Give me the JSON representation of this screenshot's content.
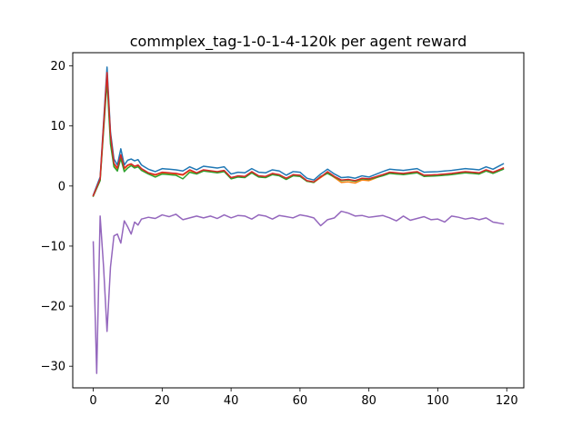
{
  "chart_data": {
    "type": "line",
    "title": "commplex_tag-1-0-1-4-120k per agent reward",
    "xlabel": "",
    "ylabel": "",
    "xlim": [
      -5.95,
      124.95
    ],
    "ylim": [
      -33.6,
      22.2
    ],
    "xticks": [
      0,
      20,
      40,
      60,
      80,
      100,
      120
    ],
    "yticks": [
      -30,
      -20,
      -10,
      0,
      10,
      20
    ],
    "xtick_labels": [
      "0",
      "20",
      "40",
      "60",
      "80",
      "100",
      "120"
    ],
    "ytick_labels": [
      "−30",
      "−20",
      "−10",
      "0",
      "10",
      "20"
    ],
    "grid": false,
    "legend": false,
    "x_start": 0,
    "x_end": 119,
    "series": [
      {
        "color": "#1f77b4",
        "anchors": [
          [
            0,
            -1.5
          ],
          [
            2,
            1.5
          ],
          [
            4,
            19.8
          ],
          [
            5,
            9
          ],
          [
            6,
            4.5
          ],
          [
            7,
            3.5
          ],
          [
            8,
            6.2
          ],
          [
            9,
            3.5
          ],
          [
            10,
            4.3
          ],
          [
            11,
            4.5
          ],
          [
            12,
            4.2
          ],
          [
            13,
            4.4
          ],
          [
            14,
            3.5
          ],
          [
            16,
            2.8
          ],
          [
            18,
            2.4
          ],
          [
            20,
            2.9
          ],
          [
            24,
            2.7
          ],
          [
            26,
            2.5
          ],
          [
            28,
            3.2
          ],
          [
            30,
            2.7
          ],
          [
            32,
            3.3
          ],
          [
            36,
            3.0
          ],
          [
            38,
            3.2
          ],
          [
            40,
            2.0
          ],
          [
            42,
            2.3
          ],
          [
            44,
            2.2
          ],
          [
            46,
            2.9
          ],
          [
            48,
            2.3
          ],
          [
            50,
            2.2
          ],
          [
            52,
            2.7
          ],
          [
            54,
            2.5
          ],
          [
            56,
            1.8
          ],
          [
            58,
            2.4
          ],
          [
            60,
            2.3
          ],
          [
            62,
            1.3
          ],
          [
            64,
            1.0
          ],
          [
            66,
            2.0
          ],
          [
            68,
            2.8
          ],
          [
            70,
            2.0
          ],
          [
            72,
            1.4
          ],
          [
            74,
            1.5
          ],
          [
            76,
            1.3
          ],
          [
            78,
            1.7
          ],
          [
            80,
            1.5
          ],
          [
            84,
            2.4
          ],
          [
            86,
            2.8
          ],
          [
            90,
            2.6
          ],
          [
            94,
            2.9
          ],
          [
            96,
            2.3
          ],
          [
            100,
            2.4
          ],
          [
            104,
            2.6
          ],
          [
            108,
            2.9
          ],
          [
            112,
            2.7
          ],
          [
            114,
            3.2
          ],
          [
            116,
            2.8
          ],
          [
            119,
            3.7
          ]
        ]
      },
      {
        "color": "#ff7f0e",
        "anchors": [
          [
            0,
            -1.6
          ],
          [
            2,
            1.0
          ],
          [
            4,
            18.5
          ],
          [
            5,
            8
          ],
          [
            6,
            3.5
          ],
          [
            7,
            2.8
          ],
          [
            8,
            5.0
          ],
          [
            9,
            2.8
          ],
          [
            10,
            3.4
          ],
          [
            11,
            3.6
          ],
          [
            12,
            3.2
          ],
          [
            13,
            3.4
          ],
          [
            14,
            2.8
          ],
          [
            16,
            2.1
          ],
          [
            18,
            1.8
          ],
          [
            20,
            2.2
          ],
          [
            24,
            2.0
          ],
          [
            26,
            1.8
          ],
          [
            28,
            2.6
          ],
          [
            30,
            2.1
          ],
          [
            32,
            2.6
          ],
          [
            36,
            2.3
          ],
          [
            38,
            2.5
          ],
          [
            40,
            1.3
          ],
          [
            42,
            1.6
          ],
          [
            44,
            1.5
          ],
          [
            46,
            2.3
          ],
          [
            48,
            1.6
          ],
          [
            50,
            1.5
          ],
          [
            52,
            2.0
          ],
          [
            54,
            1.8
          ],
          [
            56,
            1.2
          ],
          [
            58,
            1.8
          ],
          [
            60,
            1.7
          ],
          [
            62,
            0.8
          ],
          [
            64,
            0.6
          ],
          [
            66,
            1.4
          ],
          [
            68,
            2.2
          ],
          [
            70,
            1.4
          ],
          [
            72,
            0.6
          ],
          [
            74,
            0.7
          ],
          [
            76,
            0.5
          ],
          [
            78,
            1.0
          ],
          [
            80,
            0.9
          ],
          [
            84,
            1.8
          ],
          [
            86,
            2.2
          ],
          [
            90,
            2.0
          ],
          [
            94,
            2.3
          ],
          [
            96,
            1.7
          ],
          [
            100,
            1.8
          ],
          [
            104,
            2.0
          ],
          [
            108,
            2.3
          ],
          [
            112,
            2.1
          ],
          [
            114,
            2.6
          ],
          [
            116,
            2.2
          ],
          [
            119,
            3.0
          ]
        ]
      },
      {
        "color": "#2ca02c",
        "anchors": [
          [
            0,
            -1.7
          ],
          [
            2,
            0.9
          ],
          [
            4,
            17.5
          ],
          [
            5,
            7
          ],
          [
            6,
            3.2
          ],
          [
            7,
            2.5
          ],
          [
            8,
            4.6
          ],
          [
            9,
            2.4
          ],
          [
            10,
            3.0
          ],
          [
            11,
            3.4
          ],
          [
            12,
            3.0
          ],
          [
            13,
            3.2
          ],
          [
            14,
            2.6
          ],
          [
            16,
            2.0
          ],
          [
            18,
            1.5
          ],
          [
            20,
            2.0
          ],
          [
            24,
            1.8
          ],
          [
            26,
            1.2
          ],
          [
            28,
            2.3
          ],
          [
            30,
            2.0
          ],
          [
            32,
            2.5
          ],
          [
            36,
            2.2
          ],
          [
            38,
            2.4
          ],
          [
            40,
            1.2
          ],
          [
            42,
            1.5
          ],
          [
            44,
            1.4
          ],
          [
            46,
            2.2
          ],
          [
            48,
            1.5
          ],
          [
            50,
            1.4
          ],
          [
            52,
            1.9
          ],
          [
            54,
            1.7
          ],
          [
            56,
            1.1
          ],
          [
            58,
            1.7
          ],
          [
            60,
            1.6
          ],
          [
            62,
            0.8
          ],
          [
            64,
            0.6
          ],
          [
            66,
            1.6
          ],
          [
            68,
            2.1
          ],
          [
            70,
            1.5
          ],
          [
            72,
            0.9
          ],
          [
            74,
            1.0
          ],
          [
            76,
            0.8
          ],
          [
            78,
            1.2
          ],
          [
            80,
            1.1
          ],
          [
            84,
            1.7
          ],
          [
            86,
            2.1
          ],
          [
            90,
            1.9
          ],
          [
            94,
            2.2
          ],
          [
            96,
            1.6
          ],
          [
            100,
            1.7
          ],
          [
            104,
            1.9
          ],
          [
            108,
            2.2
          ],
          [
            112,
            2.0
          ],
          [
            114,
            2.5
          ],
          [
            116,
            2.1
          ],
          [
            119,
            2.8
          ]
        ]
      },
      {
        "color": "#d62728",
        "anchors": [
          [
            0,
            -1.6
          ],
          [
            2,
            1.2
          ],
          [
            4,
            18.9
          ],
          [
            5,
            8.5
          ],
          [
            6,
            3.8
          ],
          [
            7,
            3.0
          ],
          [
            8,
            5.2
          ],
          [
            9,
            3.0
          ],
          [
            10,
            3.5
          ],
          [
            11,
            3.7
          ],
          [
            12,
            3.3
          ],
          [
            13,
            3.5
          ],
          [
            14,
            2.9
          ],
          [
            16,
            2.2
          ],
          [
            18,
            1.9
          ],
          [
            20,
            2.3
          ],
          [
            24,
            2.1
          ],
          [
            26,
            1.9
          ],
          [
            28,
            2.7
          ],
          [
            30,
            2.2
          ],
          [
            32,
            2.7
          ],
          [
            36,
            2.4
          ],
          [
            38,
            2.6
          ],
          [
            40,
            1.4
          ],
          [
            42,
            1.7
          ],
          [
            44,
            1.6
          ],
          [
            46,
            2.4
          ],
          [
            48,
            1.7
          ],
          [
            50,
            1.6
          ],
          [
            52,
            2.1
          ],
          [
            54,
            1.9
          ],
          [
            56,
            1.3
          ],
          [
            58,
            1.9
          ],
          [
            60,
            1.8
          ],
          [
            62,
            0.9
          ],
          [
            64,
            0.7
          ],
          [
            66,
            1.5
          ],
          [
            68,
            2.4
          ],
          [
            70,
            1.6
          ],
          [
            72,
            1.0
          ],
          [
            74,
            1.1
          ],
          [
            76,
            0.9
          ],
          [
            78,
            1.3
          ],
          [
            80,
            1.2
          ],
          [
            84,
            1.9
          ],
          [
            86,
            2.3
          ],
          [
            90,
            2.1
          ],
          [
            94,
            2.4
          ],
          [
            96,
            1.8
          ],
          [
            100,
            1.9
          ],
          [
            104,
            2.1
          ],
          [
            108,
            2.4
          ],
          [
            112,
            2.2
          ],
          [
            114,
            2.7
          ],
          [
            116,
            2.3
          ],
          [
            119,
            3.0
          ]
        ]
      },
      {
        "color": "#9467bd",
        "anchors": [
          [
            0,
            -9.3
          ],
          [
            1,
            -31.2
          ],
          [
            2,
            -5.0
          ],
          [
            3,
            -13.5
          ],
          [
            4,
            -24.2
          ],
          [
            5,
            -13.5
          ],
          [
            6,
            -8.3
          ],
          [
            7,
            -8.0
          ],
          [
            8,
            -9.5
          ],
          [
            9,
            -5.8
          ],
          [
            10,
            -6.8
          ],
          [
            11,
            -8.0
          ],
          [
            12,
            -6.0
          ],
          [
            13,
            -6.5
          ],
          [
            14,
            -5.5
          ],
          [
            16,
            -5.2
          ],
          [
            18,
            -5.4
          ],
          [
            20,
            -4.8
          ],
          [
            22,
            -5.1
          ],
          [
            24,
            -4.7
          ],
          [
            26,
            -5.6
          ],
          [
            28,
            -5.3
          ],
          [
            30,
            -5.0
          ],
          [
            32,
            -5.3
          ],
          [
            34,
            -5.0
          ],
          [
            36,
            -5.4
          ],
          [
            38,
            -4.8
          ],
          [
            40,
            -5.3
          ],
          [
            42,
            -4.9
          ],
          [
            44,
            -5.0
          ],
          [
            46,
            -5.5
          ],
          [
            48,
            -4.8
          ],
          [
            50,
            -5.0
          ],
          [
            52,
            -5.5
          ],
          [
            54,
            -4.9
          ],
          [
            56,
            -5.1
          ],
          [
            58,
            -5.3
          ],
          [
            60,
            -4.8
          ],
          [
            62,
            -5.0
          ],
          [
            64,
            -5.3
          ],
          [
            66,
            -6.6
          ],
          [
            68,
            -5.6
          ],
          [
            70,
            -5.3
          ],
          [
            72,
            -4.2
          ],
          [
            74,
            -4.5
          ],
          [
            76,
            -5.0
          ],
          [
            78,
            -4.9
          ],
          [
            80,
            -5.2
          ],
          [
            84,
            -4.9
          ],
          [
            86,
            -5.3
          ],
          [
            88,
            -5.8
          ],
          [
            90,
            -5.0
          ],
          [
            92,
            -5.7
          ],
          [
            94,
            -5.4
          ],
          [
            96,
            -5.1
          ],
          [
            98,
            -5.6
          ],
          [
            100,
            -5.5
          ],
          [
            102,
            -6.0
          ],
          [
            104,
            -5.0
          ],
          [
            106,
            -5.2
          ],
          [
            108,
            -5.5
          ],
          [
            110,
            -5.3
          ],
          [
            112,
            -5.6
          ],
          [
            114,
            -5.3
          ],
          [
            116,
            -6.0
          ],
          [
            119,
            -6.3
          ]
        ]
      }
    ]
  }
}
